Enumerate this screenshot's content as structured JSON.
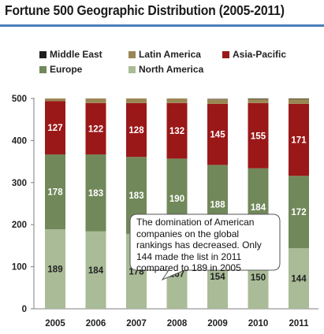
{
  "title": "Fortune 500 Geographic Distribution (2005-2011)",
  "colors": {
    "middle_east": "#1f1f1f",
    "latin_america": "#9b8755",
    "asia_pacific": "#9b1818",
    "europe": "#71885a",
    "north_america": "#a9bb97",
    "accent_rule": "#4a7ebb"
  },
  "legend": [
    {
      "label": "Middle East",
      "color_key": "middle_east"
    },
    {
      "label": "Latin America",
      "color_key": "latin_america"
    },
    {
      "label": "Asia-Pacific",
      "color_key": "asia_pacific"
    },
    {
      "label": "Europe",
      "color_key": "europe"
    },
    {
      "label": "North America",
      "color_key": "north_america"
    }
  ],
  "callout": {
    "text": "The domination of American companies on the global rankings has decreased. Only 144 made the list in 2011 compared to 189 in 2005"
  },
  "chart_data": {
    "type": "bar",
    "stacked": true,
    "title": "Fortune 500 Geographic Distribution (2005-2011)",
    "categories": [
      "2005",
      "2006",
      "2007",
      "2008",
      "2009",
      "2010",
      "2011"
    ],
    "ylim": [
      0,
      500
    ],
    "yticks": [
      0,
      100,
      200,
      300,
      400,
      500
    ],
    "legend_position": "top",
    "grid": false,
    "series": [
      {
        "name": "North America",
        "color_key": "north_america",
        "values": [
          189,
          184,
          178,
          167,
          154,
          150,
          144
        ],
        "labels": [
          "189",
          "184",
          "178",
          "167",
          "154",
          "150",
          "144"
        ]
      },
      {
        "name": "Europe",
        "color_key": "europe",
        "values": [
          178,
          183,
          183,
          190,
          188,
          184,
          172
        ],
        "labels": [
          "178",
          "183",
          "183",
          "190",
          "188",
          "184",
          "172"
        ]
      },
      {
        "name": "Asia-Pacific",
        "color_key": "asia_pacific",
        "values": [
          127,
          122,
          128,
          132,
          145,
          155,
          171
        ],
        "labels": [
          "127",
          "122",
          "128",
          "132",
          "145",
          "155",
          "171"
        ]
      },
      {
        "name": "Latin America",
        "color_key": "latin_america",
        "values": [
          6,
          11,
          11,
          11,
          11,
          10,
          12
        ],
        "labels": [
          "",
          "",
          "",
          "",
          "",
          "",
          ""
        ]
      },
      {
        "name": "Middle East",
        "color_key": "middle_east",
        "values": [
          0,
          0,
          0,
          0,
          1,
          1,
          1
        ],
        "labels": [
          "",
          "",
          "",
          "",
          "",
          "",
          ""
        ]
      }
    ]
  }
}
